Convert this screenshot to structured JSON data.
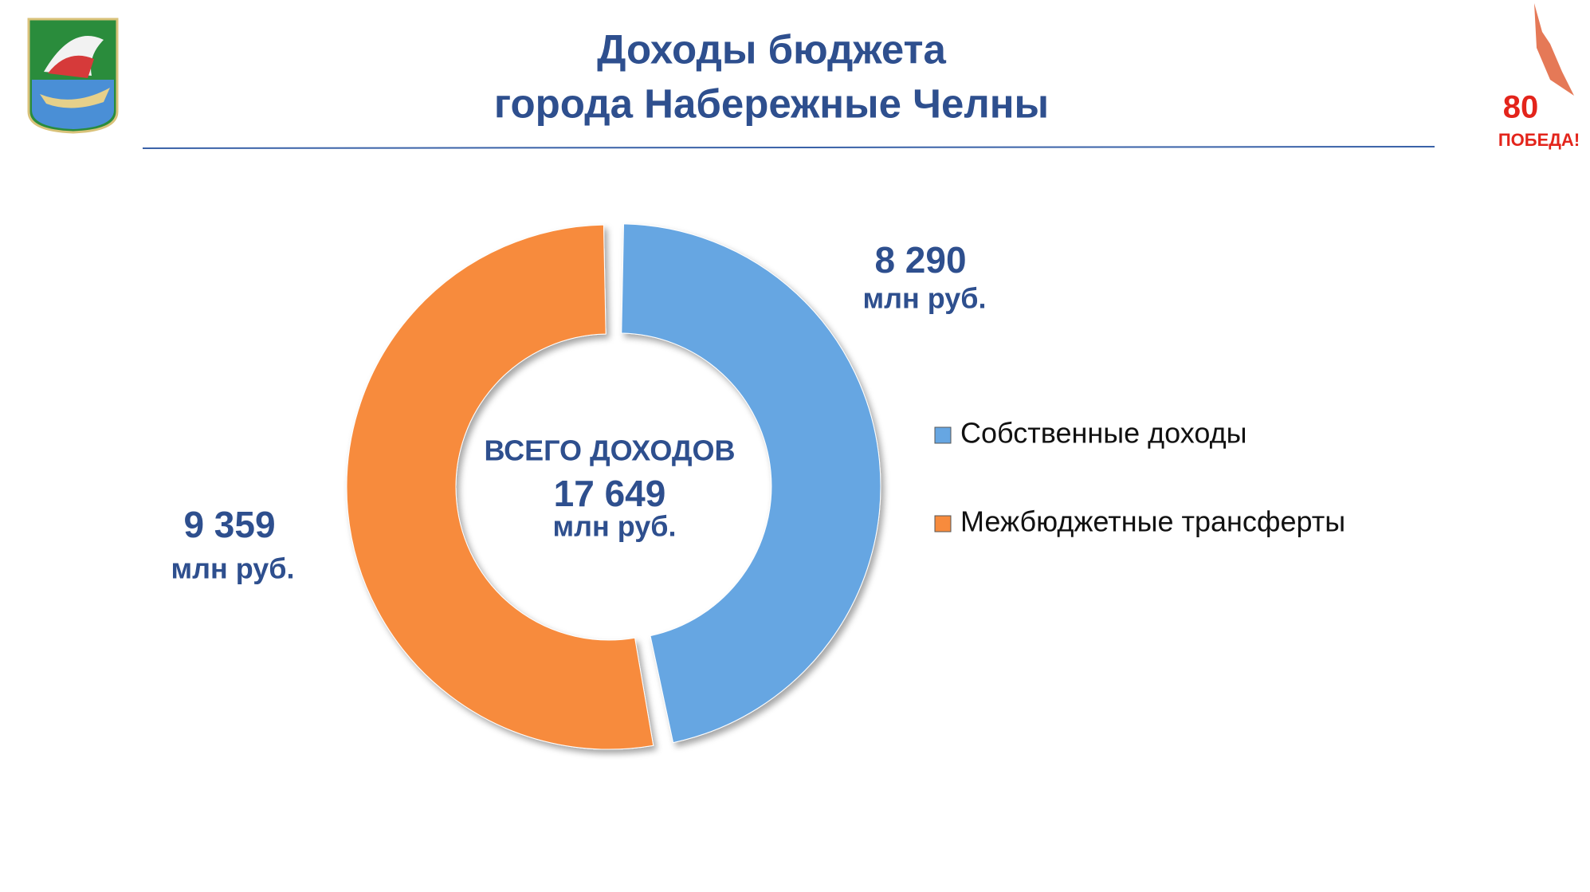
{
  "chart_data": {
    "type": "donut",
    "title": "Доходы бюджета",
    "subtitle": "города Набережные Челны",
    "categories": [
      "Собственные доходы",
      "Межбюджетные трансферты"
    ],
    "values": [
      8290,
      9359
    ],
    "value_labels": [
      "8 290",
      "9 359"
    ],
    "colors": [
      "#66a6e2",
      "#f78b3d"
    ],
    "unit": "млн руб.",
    "center_label": "ВСЕГО ДОХОДОВ",
    "total": {
      "value": 17649,
      "label": "17 649"
    },
    "legend": "right"
  },
  "badge": {
    "number": 80,
    "text": "ПОБЕДА!"
  }
}
